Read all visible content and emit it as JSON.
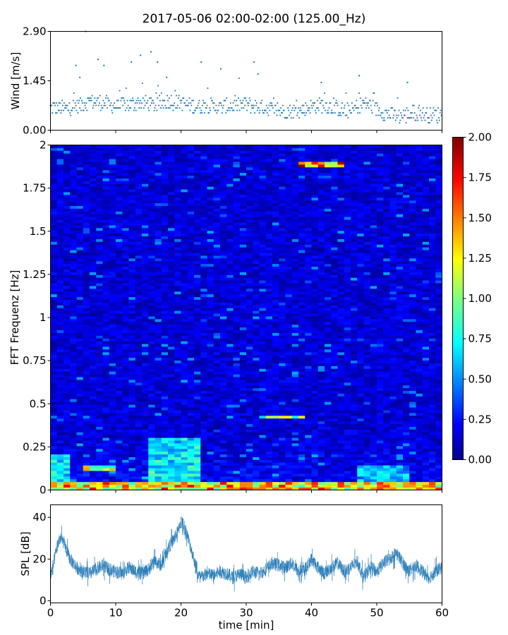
{
  "title": "2017-05-06 02:00-02:00 (125.00_Hz)",
  "chart_data": [
    {
      "id": "wind",
      "type": "scatter",
      "color": "#1f77b4",
      "ylabel": "Wind [m/s]",
      "xlabel": "",
      "xlim": [
        0,
        60
      ],
      "ylim": [
        0.0,
        2.9
      ],
      "yticks": [
        "0.00",
        "1.45",
        "2.90"
      ],
      "ytick_values": [
        0.0,
        1.45,
        2.9
      ],
      "x_step_min": 0.1,
      "quantum": 0.0725,
      "profile": [
        [
          0,
          0.68
        ],
        [
          2,
          0.62
        ],
        [
          4,
          0.7
        ],
        [
          6,
          0.85
        ],
        [
          8,
          0.8
        ],
        [
          10,
          0.7
        ],
        [
          12,
          0.75
        ],
        [
          14,
          0.8
        ],
        [
          16,
          0.72
        ],
        [
          18,
          0.85
        ],
        [
          20,
          0.8
        ],
        [
          22,
          0.7
        ],
        [
          24,
          0.72
        ],
        [
          26,
          0.68
        ],
        [
          28,
          0.72
        ],
        [
          30,
          0.75
        ],
        [
          32,
          0.68
        ],
        [
          34,
          0.62
        ],
        [
          36,
          0.55
        ],
        [
          38,
          0.55
        ],
        [
          40,
          0.7
        ],
        [
          42,
          0.75
        ],
        [
          44,
          0.62
        ],
        [
          46,
          0.55
        ],
        [
          48,
          0.8
        ],
        [
          50,
          0.62
        ],
        [
          52,
          0.45
        ],
        [
          54,
          0.42
        ],
        [
          56,
          0.5
        ],
        [
          58,
          0.45
        ],
        [
          60,
          0.45
        ]
      ],
      "spikes": [
        {
          "x": 5.4,
          "y": 2.9
        },
        {
          "x": 7.3,
          "y": 2.08
        },
        {
          "x": 3.9,
          "y": 1.9
        },
        {
          "x": 15.4,
          "y": 2.3
        },
        {
          "x": 12.4,
          "y": 2.0
        },
        {
          "x": 13.8,
          "y": 2.2
        },
        {
          "x": 16.4,
          "y": 2.0
        },
        {
          "x": 17.8,
          "y": 1.55
        },
        {
          "x": 23.1,
          "y": 2.0
        },
        {
          "x": 26.1,
          "y": 1.8
        },
        {
          "x": 31.2,
          "y": 2.0
        },
        {
          "x": 31.8,
          "y": 1.65
        },
        {
          "x": 41.5,
          "y": 1.4
        },
        {
          "x": 47.3,
          "y": 1.6
        },
        {
          "x": 54.7,
          "y": 1.4
        },
        {
          "x": 8.2,
          "y": 1.9
        },
        {
          "x": 4.5,
          "y": 1.55
        }
      ]
    },
    {
      "id": "spectrogram",
      "type": "heatmap",
      "ylabel": "FFT Frequenz [Hz]",
      "xlabel": "",
      "xlim": [
        0,
        60
      ],
      "ylim": [
        0,
        2
      ],
      "yticks": [
        "0",
        "0.25",
        "0.5",
        "0.75",
        "1",
        "1.25",
        "1.5",
        "1.75",
        "2"
      ],
      "ytick_values": [
        0,
        0.25,
        0.5,
        0.75,
        1.0,
        1.25,
        1.5,
        1.75,
        2.0
      ],
      "colormap": "jet",
      "clim": [
        0.0,
        2.0
      ],
      "colorbar_ticks": [
        "0.00",
        "0.25",
        "0.50",
        "0.75",
        "1.00",
        "1.25",
        "1.50",
        "1.75",
        "2.00"
      ],
      "colorbar_tick_values": [
        0,
        0.25,
        0.5,
        0.75,
        1.0,
        1.25,
        1.5,
        1.75,
        2.0
      ],
      "time_columns": 60,
      "freq_rows": 125,
      "background_level": 0.17,
      "features": [
        {
          "kind": "low-band",
          "f0": 0.0,
          "f1": 0.04,
          "t0": 0,
          "t1": 60,
          "level": 1.4
        },
        {
          "kind": "region",
          "f0": 0.0,
          "f1": 0.3,
          "t0": 15.5,
          "t1": 22.5,
          "level": 0.75
        },
        {
          "kind": "region",
          "f0": 0.0,
          "f1": 0.2,
          "t0": 0,
          "t1": 3,
          "level": 0.7
        },
        {
          "kind": "region",
          "f0": 0.0,
          "f1": 0.15,
          "t0": 47,
          "t1": 55,
          "level": 0.6
        },
        {
          "kind": "line",
          "f0": 0.41,
          "f1": 0.43,
          "t0": 32,
          "t1": 39,
          "level": 1.1
        },
        {
          "kind": "line",
          "f0": 1.88,
          "f1": 1.9,
          "t0": 38.5,
          "t1": 45,
          "level": 1.7
        },
        {
          "kind": "line",
          "f0": 0.12,
          "f1": 0.14,
          "t0": 5,
          "t1": 10,
          "level": 1.2
        }
      ]
    },
    {
      "id": "spl",
      "type": "line",
      "color": "#1f77b4",
      "ylabel": "SPL [dB]",
      "xlabel": "time [min]",
      "xlim": [
        0,
        60
      ],
      "ylim": [
        -1,
        46
      ],
      "yticks": [
        "0",
        "20",
        "40"
      ],
      "ytick_values": [
        0,
        20,
        40
      ],
      "xticks": [
        "0",
        "10",
        "20",
        "30",
        "40",
        "50",
        "60"
      ],
      "xtick_values": [
        0,
        10,
        20,
        30,
        40,
        50,
        60
      ],
      "series": [
        {
          "x": [
            0,
            0.5,
            1,
            1.5,
            2,
            2.5,
            3,
            4,
            5,
            6,
            7,
            8,
            9,
            10,
            11,
            12,
            13,
            14,
            15,
            16,
            17,
            18,
            19,
            19.5,
            20,
            20.5,
            21,
            22,
            22.5,
            23,
            24,
            25,
            26,
            27,
            28,
            29,
            30,
            31,
            32,
            33,
            34,
            35,
            36,
            37,
            38,
            39,
            40,
            41,
            42,
            43,
            44,
            45,
            46,
            47,
            48,
            49,
            50,
            51,
            52,
            53,
            54,
            55,
            56,
            57,
            58,
            59,
            60
          ],
          "y": [
            12,
            18,
            26,
            30,
            28,
            24,
            20,
            16,
            14,
            13,
            15,
            17,
            15,
            14,
            13,
            16,
            14,
            13,
            15,
            19,
            17,
            25,
            30,
            33,
            38,
            36,
            31,
            20,
            13,
            11,
            13,
            12,
            14,
            13,
            11,
            13,
            11,
            14,
            13,
            15,
            18,
            17,
            16,
            18,
            14,
            15,
            20,
            16,
            13,
            16,
            18,
            14,
            16,
            19,
            11,
            16,
            14,
            18,
            20,
            23,
            18,
            14,
            17,
            14,
            11,
            14,
            16
          ]
        }
      ],
      "band_halfwidth": 3.2
    }
  ]
}
